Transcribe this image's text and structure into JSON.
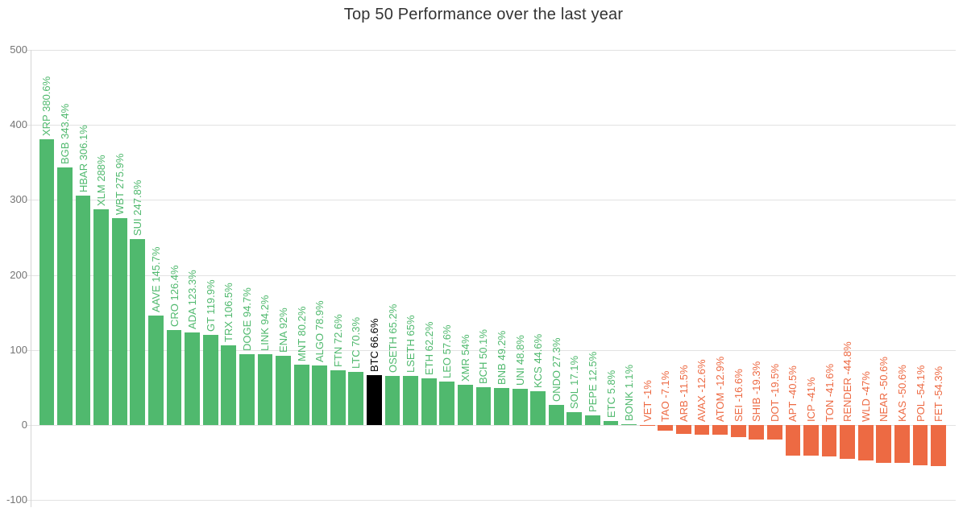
{
  "chart_data": {
    "type": "bar",
    "title": "Top 50 Performance over the last year",
    "categories": [
      "XRP",
      "BGB",
      "HBAR",
      "XLM",
      "WBT",
      "SUI",
      "AAVE",
      "CRO",
      "ADA",
      "GT",
      "TRX",
      "DOGE",
      "LINK",
      "ENA",
      "MNT",
      "ALGO",
      "FTN",
      "LTC",
      "BTC",
      "OSETH",
      "LSETH",
      "ETH",
      "LEO",
      "XMR",
      "BCH",
      "BNB",
      "UNI",
      "KCS",
      "ONDO",
      "SOL",
      "PEPE",
      "ETC",
      "BONK",
      "VET",
      "TAO",
      "ARB",
      "AVAX",
      "ATOM",
      "SEI",
      "SHIB",
      "DOT",
      "APT",
      "ICP",
      "TON",
      "RENDER",
      "WLD",
      "NEAR",
      "KAS",
      "POL",
      "FET"
    ],
    "values": [
      380.6,
      343.4,
      306.1,
      288,
      275.9,
      247.8,
      145.7,
      126.4,
      123.3,
      119.9,
      106.5,
      94.7,
      94.2,
      92,
      80.2,
      78.9,
      72.6,
      70.3,
      66.6,
      65.2,
      65,
      62.2,
      57.6,
      54,
      50.1,
      49.2,
      48.8,
      44.6,
      27.3,
      17.1,
      12.5,
      5.8,
      1.1,
      -1,
      -7.1,
      -11.5,
      -12.6,
      -12.9,
      -16.6,
      -19.3,
      -19.5,
      -40.5,
      -41,
      -41.6,
      -44.8,
      -47,
      -50.6,
      -50.6,
      -54.1,
      -54.3
    ],
    "bar_labels": [
      "XRP 380.6%",
      "BGB 343.4%",
      "HBAR 306.1%",
      "XLM 288%",
      "WBT 275.9%",
      "SUI 247.8%",
      "AAVE 145.7%",
      "CRO 126.4%",
      "ADA 123.3%",
      "GT 119.9%",
      "TRX 106.5%",
      "DOGE 94.7%",
      "LINK 94.2%",
      "ENA 92%",
      "MNT 80.2%",
      "ALGO 78.9%",
      "FTN 72.6%",
      "LTC 70.3%",
      "BTC 66.6%",
      "OSETH 65.2%",
      "LSETH 65%",
      "ETH 62.2%",
      "LEO 57.6%",
      "XMR 54%",
      "BCH 50.1%",
      "BNB 49.2%",
      "UNI 48.8%",
      "KCS 44.6%",
      "ONDO 27.3%",
      "SOL 17.1%",
      "PEPE 12.5%",
      "ETC 5.8%",
      "BONK 1.1%",
      "VET -1%",
      "TAO -7.1%",
      "ARB -11.5%",
      "AVAX -12.6%",
      "ATOM -12.9%",
      "SEI -16.6%",
      "SHIB -19.3%",
      "DOT -19.5%",
      "APT -40.5%",
      "ICP -41%",
      "TON -41.6%",
      "RENDER -44.8%",
      "WLD -47%",
      "NEAR -50.6%",
      "KAS -50.6%",
      "POL -54.1%",
      "FET -54.3%"
    ],
    "highlight_category": "BTC",
    "y_axis": {
      "ticks": [
        500,
        400,
        300,
        200,
        100,
        0,
        -100
      ],
      "visible_range": [
        -100,
        500
      ]
    },
    "xlabel": "",
    "ylabel": "",
    "grid": true,
    "legend": false,
    "colors": {
      "positive": "#50b96e",
      "negative": "#ed6a43",
      "highlight": "#000000",
      "gridline": "#e2e2e2",
      "axis_line": "#d5d5d5",
      "tick_label": "#757575",
      "title": "#333333"
    }
  }
}
